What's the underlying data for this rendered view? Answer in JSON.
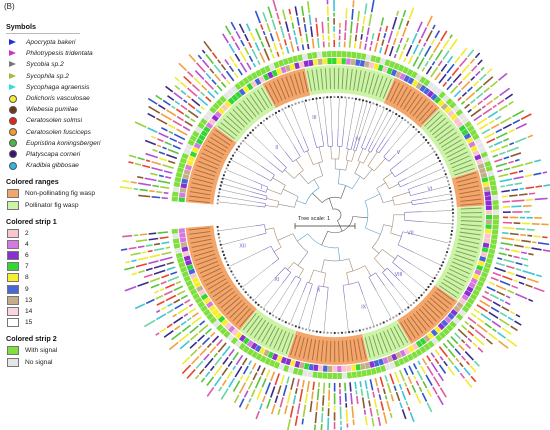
{
  "panel_label": "(B)",
  "legend": {
    "symbols": {
      "title": "Symbols",
      "items": [
        {
          "label": "Apocrypta bakeri",
          "shape": "triangle-right",
          "color": "#2233cc"
        },
        {
          "label": "Philotrypesis tridentata",
          "shape": "triangle-right",
          "color": "#cc33cc"
        },
        {
          "label": "Sycobia sp.2",
          "shape": "triangle-right",
          "color": "#777777"
        },
        {
          "label": "Sycophila sp.2",
          "shape": "triangle-right",
          "color": "#a9b83c"
        },
        {
          "label": "Sycophaga agraensis",
          "shape": "triangle-right",
          "color": "#33dddd"
        },
        {
          "label": "Dolichoris vasculosae",
          "shape": "circle",
          "color": "#f4ee3a"
        },
        {
          "label": "Wiebesia pumilae",
          "shape": "circle",
          "color": "#6b3a1e"
        },
        {
          "label": "Ceratosolen solmsi",
          "shape": "circle",
          "color": "#e8231f"
        },
        {
          "label": "Ceratosolen fusciceps",
          "shape": "circle",
          "color": "#f39a2b"
        },
        {
          "label": "Eupristina koningsbergeri",
          "shape": "circle",
          "color": "#4cb848"
        },
        {
          "label": "Platyscapa corneri",
          "shape": "circle",
          "color": "#3a1672"
        },
        {
          "label": "Kradibia gibbosae",
          "shape": "circle",
          "color": "#2fb5e0"
        }
      ]
    },
    "colored_ranges": {
      "title": "Colored ranges",
      "items": [
        {
          "label": "Non-pollinating fig wasp",
          "color": "#f3a56a"
        },
        {
          "label": "Pollinator fig wasp",
          "color": "#ccf3a6"
        }
      ]
    },
    "strip1": {
      "title": "Colored strip 1",
      "items": [
        {
          "label": "2",
          "color": "#f8c6cc"
        },
        {
          "label": "4",
          "color": "#d777e0"
        },
        {
          "label": "6",
          "color": "#8a2fd0"
        },
        {
          "label": "7",
          "color": "#34d634"
        },
        {
          "label": "8",
          "color": "#f7ef2c"
        },
        {
          "label": "9",
          "color": "#4767d8"
        },
        {
          "label": "13",
          "color": "#c4ad8a"
        },
        {
          "label": "14",
          "color": "#fbd5de"
        },
        {
          "label": "15",
          "color": "#ffffff"
        }
      ]
    },
    "strip2": {
      "title": "Colored strip 2",
      "items": [
        {
          "label": "With signal",
          "color": "#7fe03d"
        },
        {
          "label": "No signal",
          "color": "#e6e6e6"
        }
      ]
    }
  },
  "tree": {
    "scale_label": "Tree scale: 1",
    "clade_labels": [
      "I",
      "II",
      "III",
      "IV",
      "V",
      "VI",
      "VII",
      "VIII",
      "IX",
      "X",
      "XI",
      "XII"
    ]
  }
}
